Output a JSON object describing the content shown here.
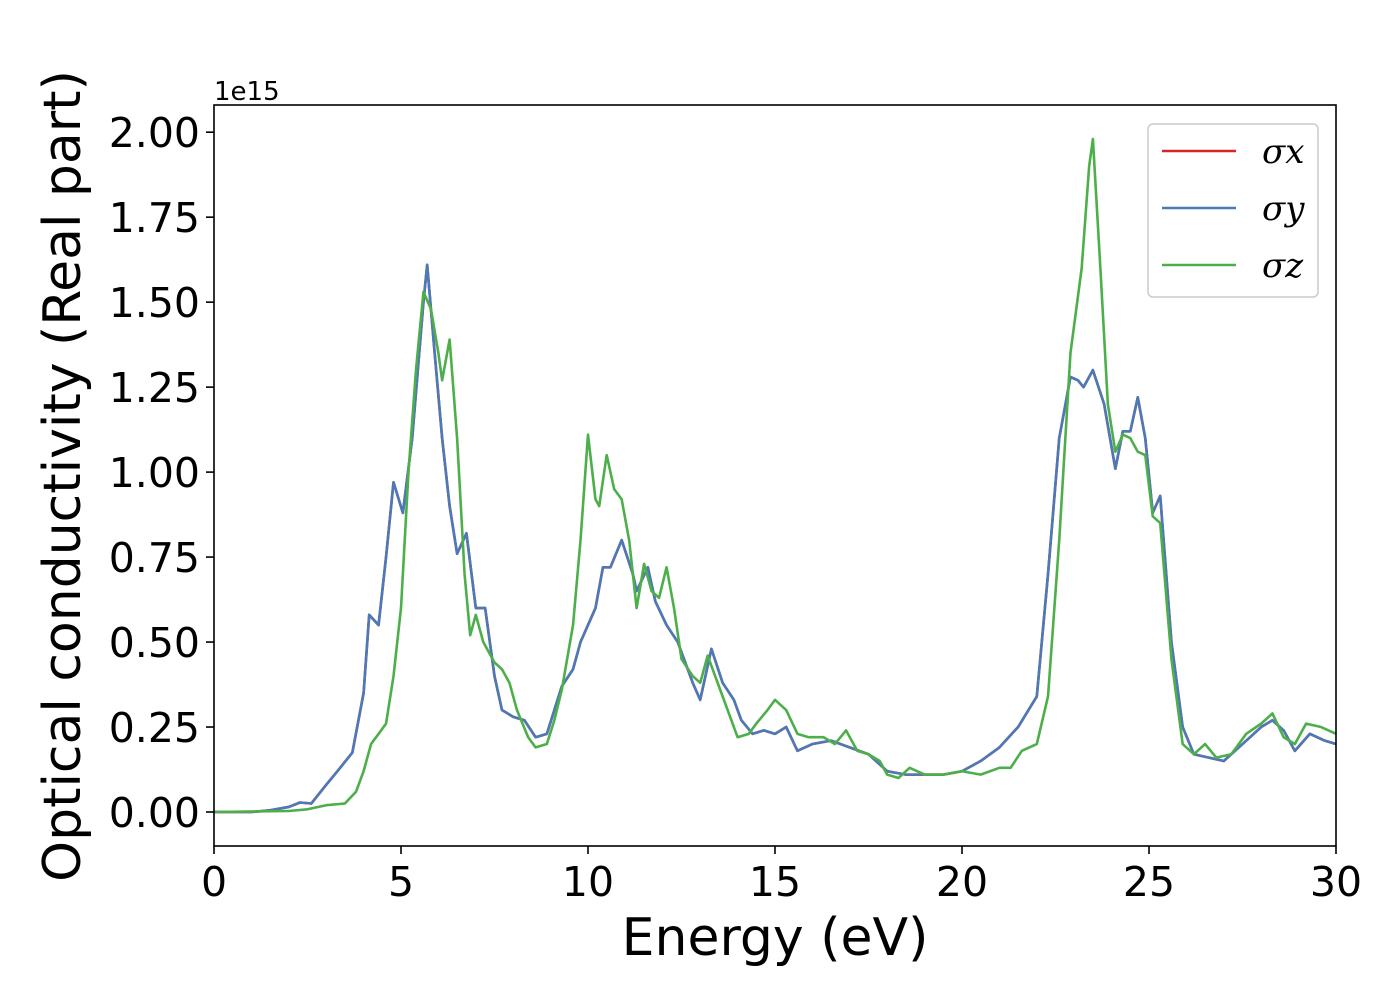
{
  "chart_data": {
    "type": "line",
    "xlabel": "Energy (eV)",
    "ylabel": "Optical conductivity (Real part)",
    "offset_text": "1e15",
    "xlim": [
      0,
      30
    ],
    "ylim": [
      -0.1,
      2.08
    ],
    "x_ticks": [
      0,
      5,
      10,
      15,
      20,
      25,
      30
    ],
    "x_tick_labels": [
      "0",
      "5",
      "10",
      "15",
      "20",
      "25",
      "30"
    ],
    "y_ticks": [
      0,
      0.25,
      0.5,
      0.75,
      1.0,
      1.25,
      1.5,
      1.75,
      2.0
    ],
    "y_tick_labels": [
      "0.00",
      "0.25",
      "0.50",
      "0.75",
      "1.00",
      "1.25",
      "1.50",
      "1.75",
      "2.00"
    ],
    "y_scale_multiplier": 1000000000000000.0,
    "grid": false,
    "legend_position": "top-right",
    "series": [
      {
        "name": "σx",
        "color": "#d62728",
        "points": [
          [
            0,
            0
          ],
          [
            1,
            0
          ],
          [
            1.5,
            0.005
          ],
          [
            2,
            0.015
          ],
          [
            2.3,
            0.028
          ],
          [
            2.6,
            0.025
          ],
          [
            3,
            0.08
          ],
          [
            3.3,
            0.12
          ],
          [
            3.7,
            0.175
          ],
          [
            4,
            0.35
          ],
          [
            4.15,
            0.58
          ],
          [
            4.4,
            0.55
          ],
          [
            4.6,
            0.75
          ],
          [
            4.8,
            0.97
          ],
          [
            5.05,
            0.88
          ],
          [
            5.3,
            1.1
          ],
          [
            5.6,
            1.5
          ],
          [
            5.7,
            1.61
          ],
          [
            5.9,
            1.35
          ],
          [
            6.1,
            1.1
          ],
          [
            6.3,
            0.9
          ],
          [
            6.5,
            0.76
          ],
          [
            6.75,
            0.82
          ],
          [
            7.0,
            0.6
          ],
          [
            7.25,
            0.6
          ],
          [
            7.5,
            0.4
          ],
          [
            7.7,
            0.3
          ],
          [
            8.0,
            0.28
          ],
          [
            8.3,
            0.27
          ],
          [
            8.6,
            0.22
          ],
          [
            8.9,
            0.23
          ],
          [
            9.1,
            0.3
          ],
          [
            9.3,
            0.37
          ],
          [
            9.6,
            0.42
          ],
          [
            9.8,
            0.5
          ],
          [
            10.0,
            0.55
          ],
          [
            10.2,
            0.6
          ],
          [
            10.4,
            0.72
          ],
          [
            10.6,
            0.72
          ],
          [
            10.9,
            0.8
          ],
          [
            11.2,
            0.7
          ],
          [
            11.3,
            0.65
          ],
          [
            11.6,
            0.72
          ],
          [
            11.8,
            0.62
          ],
          [
            12.1,
            0.55
          ],
          [
            12.4,
            0.5
          ],
          [
            12.8,
            0.38
          ],
          [
            13.0,
            0.33
          ],
          [
            13.3,
            0.48
          ],
          [
            13.6,
            0.38
          ],
          [
            13.9,
            0.33
          ],
          [
            14.1,
            0.27
          ],
          [
            14.4,
            0.23
          ],
          [
            14.7,
            0.24
          ],
          [
            15.0,
            0.23
          ],
          [
            15.3,
            0.25
          ],
          [
            15.6,
            0.18
          ],
          [
            16.0,
            0.2
          ],
          [
            16.5,
            0.21
          ],
          [
            17.0,
            0.19
          ],
          [
            17.5,
            0.17
          ],
          [
            18.0,
            0.12
          ],
          [
            18.5,
            0.11
          ],
          [
            19.0,
            0.11
          ],
          [
            19.5,
            0.11
          ],
          [
            20.0,
            0.12
          ],
          [
            20.5,
            0.15
          ],
          [
            21.0,
            0.19
          ],
          [
            21.5,
            0.25
          ],
          [
            22.0,
            0.34
          ],
          [
            22.3,
            0.7
          ],
          [
            22.6,
            1.1
          ],
          [
            22.9,
            1.28
          ],
          [
            23.1,
            1.27
          ],
          [
            23.25,
            1.25
          ],
          [
            23.5,
            1.3
          ],
          [
            23.8,
            1.2
          ],
          [
            24.1,
            1.01
          ],
          [
            24.3,
            1.12
          ],
          [
            24.5,
            1.12
          ],
          [
            24.7,
            1.22
          ],
          [
            24.9,
            1.1
          ],
          [
            25.1,
            0.88
          ],
          [
            25.3,
            0.93
          ],
          [
            25.6,
            0.5
          ],
          [
            25.9,
            0.25
          ],
          [
            26.2,
            0.17
          ],
          [
            26.6,
            0.16
          ],
          [
            27.0,
            0.15
          ],
          [
            27.5,
            0.2
          ],
          [
            28.0,
            0.25
          ],
          [
            28.3,
            0.27
          ],
          [
            28.6,
            0.24
          ],
          [
            28.9,
            0.18
          ],
          [
            29.3,
            0.23
          ],
          [
            29.7,
            0.21
          ],
          [
            30.0,
            0.2
          ]
        ]
      },
      {
        "name": "σy",
        "color": "#4a7ab7",
        "points": [
          [
            0,
            0
          ],
          [
            1,
            0
          ],
          [
            1.5,
            0.005
          ],
          [
            2,
            0.015
          ],
          [
            2.3,
            0.028
          ],
          [
            2.6,
            0.025
          ],
          [
            3,
            0.08
          ],
          [
            3.3,
            0.12
          ],
          [
            3.7,
            0.175
          ],
          [
            4,
            0.35
          ],
          [
            4.15,
            0.58
          ],
          [
            4.4,
            0.55
          ],
          [
            4.6,
            0.75
          ],
          [
            4.8,
            0.97
          ],
          [
            5.05,
            0.88
          ],
          [
            5.3,
            1.1
          ],
          [
            5.6,
            1.5
          ],
          [
            5.7,
            1.61
          ],
          [
            5.9,
            1.35
          ],
          [
            6.1,
            1.1
          ],
          [
            6.3,
            0.9
          ],
          [
            6.5,
            0.76
          ],
          [
            6.75,
            0.82
          ],
          [
            7.0,
            0.6
          ],
          [
            7.25,
            0.6
          ],
          [
            7.5,
            0.4
          ],
          [
            7.7,
            0.3
          ],
          [
            8.0,
            0.28
          ],
          [
            8.3,
            0.27
          ],
          [
            8.6,
            0.22
          ],
          [
            8.9,
            0.23
          ],
          [
            9.1,
            0.3
          ],
          [
            9.3,
            0.37
          ],
          [
            9.6,
            0.42
          ],
          [
            9.8,
            0.5
          ],
          [
            10.0,
            0.55
          ],
          [
            10.2,
            0.6
          ],
          [
            10.4,
            0.72
          ],
          [
            10.6,
            0.72
          ],
          [
            10.9,
            0.8
          ],
          [
            11.2,
            0.7
          ],
          [
            11.3,
            0.65
          ],
          [
            11.6,
            0.72
          ],
          [
            11.8,
            0.62
          ],
          [
            12.1,
            0.55
          ],
          [
            12.4,
            0.5
          ],
          [
            12.8,
            0.38
          ],
          [
            13.0,
            0.33
          ],
          [
            13.3,
            0.48
          ],
          [
            13.6,
            0.38
          ],
          [
            13.9,
            0.33
          ],
          [
            14.1,
            0.27
          ],
          [
            14.4,
            0.23
          ],
          [
            14.7,
            0.24
          ],
          [
            15.0,
            0.23
          ],
          [
            15.3,
            0.25
          ],
          [
            15.6,
            0.18
          ],
          [
            16.0,
            0.2
          ],
          [
            16.5,
            0.21
          ],
          [
            17.0,
            0.19
          ],
          [
            17.5,
            0.17
          ],
          [
            18.0,
            0.12
          ],
          [
            18.5,
            0.11
          ],
          [
            19.0,
            0.11
          ],
          [
            19.5,
            0.11
          ],
          [
            20.0,
            0.12
          ],
          [
            20.5,
            0.15
          ],
          [
            21.0,
            0.19
          ],
          [
            21.5,
            0.25
          ],
          [
            22.0,
            0.34
          ],
          [
            22.3,
            0.7
          ],
          [
            22.6,
            1.1
          ],
          [
            22.9,
            1.28
          ],
          [
            23.1,
            1.27
          ],
          [
            23.25,
            1.25
          ],
          [
            23.5,
            1.3
          ],
          [
            23.8,
            1.2
          ],
          [
            24.1,
            1.01
          ],
          [
            24.3,
            1.12
          ],
          [
            24.5,
            1.12
          ],
          [
            24.7,
            1.22
          ],
          [
            24.9,
            1.1
          ],
          [
            25.1,
            0.88
          ],
          [
            25.3,
            0.93
          ],
          [
            25.6,
            0.5
          ],
          [
            25.9,
            0.25
          ],
          [
            26.2,
            0.17
          ],
          [
            26.6,
            0.16
          ],
          [
            27.0,
            0.15
          ],
          [
            27.5,
            0.2
          ],
          [
            28.0,
            0.25
          ],
          [
            28.3,
            0.27
          ],
          [
            28.6,
            0.24
          ],
          [
            28.9,
            0.18
          ],
          [
            29.3,
            0.23
          ],
          [
            29.7,
            0.21
          ],
          [
            30.0,
            0.2
          ]
        ]
      },
      {
        "name": "σz",
        "color": "#4daf4a",
        "points": [
          [
            0,
            0
          ],
          [
            2,
            0.003
          ],
          [
            2.5,
            0.008
          ],
          [
            3,
            0.02
          ],
          [
            3.5,
            0.025
          ],
          [
            3.8,
            0.06
          ],
          [
            4.0,
            0.12
          ],
          [
            4.2,
            0.2
          ],
          [
            4.6,
            0.26
          ],
          [
            4.8,
            0.4
          ],
          [
            5.0,
            0.6
          ],
          [
            5.2,
            1.0
          ],
          [
            5.4,
            1.3
          ],
          [
            5.6,
            1.53
          ],
          [
            5.8,
            1.48
          ],
          [
            6.0,
            1.35
          ],
          [
            6.1,
            1.27
          ],
          [
            6.3,
            1.39
          ],
          [
            6.5,
            1.1
          ],
          [
            6.7,
            0.7
          ],
          [
            6.85,
            0.52
          ],
          [
            7.0,
            0.58
          ],
          [
            7.2,
            0.5
          ],
          [
            7.5,
            0.44
          ],
          [
            7.7,
            0.42
          ],
          [
            7.9,
            0.38
          ],
          [
            8.1,
            0.3
          ],
          [
            8.4,
            0.22
          ],
          [
            8.6,
            0.19
          ],
          [
            8.9,
            0.2
          ],
          [
            9.1,
            0.27
          ],
          [
            9.3,
            0.36
          ],
          [
            9.6,
            0.55
          ],
          [
            9.8,
            0.8
          ],
          [
            10.0,
            1.11
          ],
          [
            10.2,
            0.92
          ],
          [
            10.3,
            0.9
          ],
          [
            10.5,
            1.05
          ],
          [
            10.7,
            0.95
          ],
          [
            10.9,
            0.92
          ],
          [
            11.1,
            0.8
          ],
          [
            11.3,
            0.6
          ],
          [
            11.5,
            0.73
          ],
          [
            11.7,
            0.65
          ],
          [
            11.9,
            0.63
          ],
          [
            12.1,
            0.72
          ],
          [
            12.3,
            0.6
          ],
          [
            12.5,
            0.45
          ],
          [
            12.8,
            0.4
          ],
          [
            13.0,
            0.38
          ],
          [
            13.2,
            0.46
          ],
          [
            13.5,
            0.37
          ],
          [
            13.8,
            0.28
          ],
          [
            14.0,
            0.22
          ],
          [
            14.3,
            0.23
          ],
          [
            14.5,
            0.26
          ],
          [
            14.8,
            0.3
          ],
          [
            15.0,
            0.33
          ],
          [
            15.3,
            0.3
          ],
          [
            15.6,
            0.23
          ],
          [
            15.9,
            0.22
          ],
          [
            16.3,
            0.22
          ],
          [
            16.6,
            0.2
          ],
          [
            16.9,
            0.24
          ],
          [
            17.2,
            0.18
          ],
          [
            17.5,
            0.17
          ],
          [
            17.8,
            0.15
          ],
          [
            18.0,
            0.11
          ],
          [
            18.3,
            0.1
          ],
          [
            18.6,
            0.13
          ],
          [
            19.0,
            0.11
          ],
          [
            19.5,
            0.11
          ],
          [
            20.0,
            0.12
          ],
          [
            20.5,
            0.11
          ],
          [
            21.0,
            0.13
          ],
          [
            21.3,
            0.13
          ],
          [
            21.6,
            0.18
          ],
          [
            22.0,
            0.2
          ],
          [
            22.3,
            0.34
          ],
          [
            22.6,
            0.8
          ],
          [
            22.9,
            1.35
          ],
          [
            23.2,
            1.6
          ],
          [
            23.4,
            1.9
          ],
          [
            23.5,
            1.98
          ],
          [
            23.7,
            1.6
          ],
          [
            23.9,
            1.2
          ],
          [
            24.1,
            1.06
          ],
          [
            24.3,
            1.11
          ],
          [
            24.5,
            1.1
          ],
          [
            24.7,
            1.06
          ],
          [
            24.9,
            1.05
          ],
          [
            25.1,
            0.87
          ],
          [
            25.3,
            0.85
          ],
          [
            25.6,
            0.45
          ],
          [
            25.9,
            0.2
          ],
          [
            26.2,
            0.17
          ],
          [
            26.5,
            0.2
          ],
          [
            26.8,
            0.16
          ],
          [
            27.2,
            0.17
          ],
          [
            27.6,
            0.23
          ],
          [
            28.0,
            0.26
          ],
          [
            28.3,
            0.29
          ],
          [
            28.6,
            0.22
          ],
          [
            28.9,
            0.2
          ],
          [
            29.2,
            0.26
          ],
          [
            29.6,
            0.25
          ],
          [
            30.0,
            0.23
          ]
        ]
      }
    ]
  }
}
